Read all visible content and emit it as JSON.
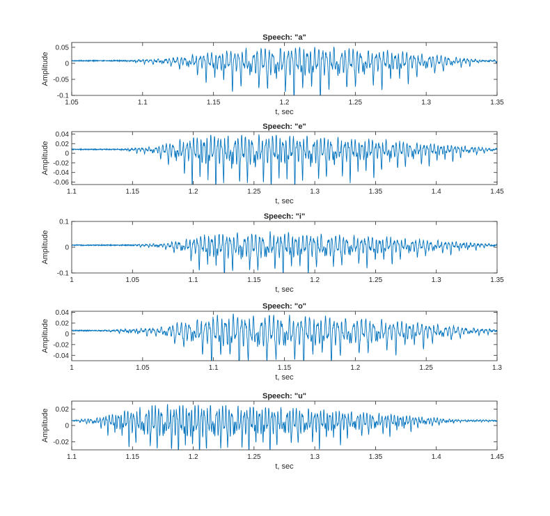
{
  "chart_data": [
    {
      "type": "line",
      "title": "Speech: \"a\"",
      "xlabel": "t, sec",
      "ylabel": "Amplitude",
      "xlim": [
        1.05,
        1.35
      ],
      "ylim": [
        -0.1,
        0.065
      ],
      "xticks": [
        1.05,
        1.1,
        1.15,
        1.2,
        1.25,
        1.3,
        1.35
      ],
      "xtick_labels": [
        "1.05",
        "1.1",
        "1.15",
        "1.2",
        "1.25",
        "1.3",
        "1.35"
      ],
      "yticks": [
        -0.1,
        -0.05,
        0,
        0.05
      ],
      "ytick_labels": [
        "-0.1",
        "-0.05",
        "0",
        "0.05"
      ],
      "line_color": "#0072BD",
      "waveform": {
        "onset": 1.085,
        "attack": 1.12,
        "peak_center": 1.205,
        "decay_end": 1.34,
        "period": 0.0062,
        "baseline": 0.008,
        "pos_peak": 0.06,
        "neg_peak": -0.085,
        "noise": 0.004
      }
    },
    {
      "type": "line",
      "title": "Speech: \"e\"",
      "xlabel": "t, sec",
      "ylabel": "Amplitude",
      "xlim": [
        1.1,
        1.45
      ],
      "ylim": [
        -0.065,
        0.045
      ],
      "xticks": [
        1.1,
        1.15,
        1.2,
        1.25,
        1.3,
        1.35,
        1.4,
        1.45
      ],
      "xtick_labels": [
        "1.1",
        "1.15",
        "1.2",
        "1.25",
        "1.3",
        "1.35",
        "1.4",
        "1.45"
      ],
      "yticks": [
        -0.06,
        -0.04,
        -0.02,
        0,
        0.02,
        0.04
      ],
      "ytick_labels": [
        "-0.06",
        "-0.04",
        "-0.02",
        "0",
        "0.02",
        "0.04"
      ],
      "line_color": "#0072BD",
      "waveform": {
        "onset": 1.138,
        "attack": 1.168,
        "peak_center": 1.225,
        "decay_end": 1.45,
        "period": 0.0065,
        "baseline": 0.008,
        "pos_peak": 0.042,
        "neg_peak": -0.062,
        "noise": 0.003
      }
    },
    {
      "type": "line",
      "title": "Speech: \"i\"",
      "xlabel": "t, sec",
      "ylabel": "Amplitude",
      "xlim": [
        1.0,
        1.35
      ],
      "ylim": [
        -0.1,
        0.1
      ],
      "xticks": [
        1.0,
        1.05,
        1.1,
        1.15,
        1.2,
        1.25,
        1.3,
        1.35
      ],
      "xtick_labels": [
        "1",
        "1.05",
        "1.1",
        "1.15",
        "1.2",
        "1.25",
        "1.3",
        "1.35"
      ],
      "yticks": [
        -0.1,
        0,
        0.1
      ],
      "ytick_labels": [
        "-0.1",
        "0",
        "0.1"
      ],
      "line_color": "#0072BD",
      "waveform": {
        "onset": 1.047,
        "attack": 1.08,
        "peak_center": 1.13,
        "decay_end": 1.35,
        "period": 0.0069,
        "baseline": 0.008,
        "pos_peak": 0.065,
        "neg_peak": -0.085,
        "noise": 0.006
      }
    },
    {
      "type": "line",
      "title": "Speech: \"o\"",
      "xlabel": "t, sec",
      "ylabel": "Amplitude",
      "xlim": [
        1.0,
        1.3
      ],
      "ylim": [
        -0.05,
        0.042
      ],
      "xticks": [
        1.0,
        1.05,
        1.1,
        1.15,
        1.2,
        1.25,
        1.3
      ],
      "xtick_labels": [
        "1",
        "1.05",
        "1.1",
        "1.15",
        "1.2",
        "1.25",
        "1.3"
      ],
      "yticks": [
        -0.04,
        -0.02,
        0,
        0.02,
        0.04
      ],
      "ytick_labels": [
        "-0.04",
        "-0.02",
        "0",
        "0.02",
        "0.04"
      ],
      "line_color": "#0072BD",
      "waveform": {
        "onset": 1.02,
        "attack": 1.06,
        "peak_center": 1.12,
        "decay_end": 1.3,
        "period": 0.0065,
        "baseline": 0.006,
        "pos_peak": 0.04,
        "neg_peak": -0.048,
        "noise": 0.003
      }
    },
    {
      "type": "line",
      "title": "Speech: \"u\"",
      "xlabel": "t, sec",
      "ylabel": "Amplitude",
      "xlim": [
        1.1,
        1.45
      ],
      "ylim": [
        -0.03,
        0.03
      ],
      "xticks": [
        1.1,
        1.15,
        1.2,
        1.25,
        1.3,
        1.35,
        1.4,
        1.45
      ],
      "xtick_labels": [
        "1.1",
        "1.15",
        "1.2",
        "1.25",
        "1.3",
        "1.35",
        "1.4",
        "1.45"
      ],
      "yticks": [
        -0.02,
        0,
        0.02
      ],
      "ytick_labels": [
        "-0.02",
        "0",
        "0.02"
      ],
      "line_color": "#0072BD",
      "waveform": {
        "onset": 1.1,
        "attack": 1.12,
        "peak_center": 1.185,
        "decay_end": 1.42,
        "period": 0.0058,
        "baseline": 0.006,
        "pos_peak": 0.027,
        "neg_peak": -0.028,
        "noise": 0.0015
      }
    }
  ]
}
